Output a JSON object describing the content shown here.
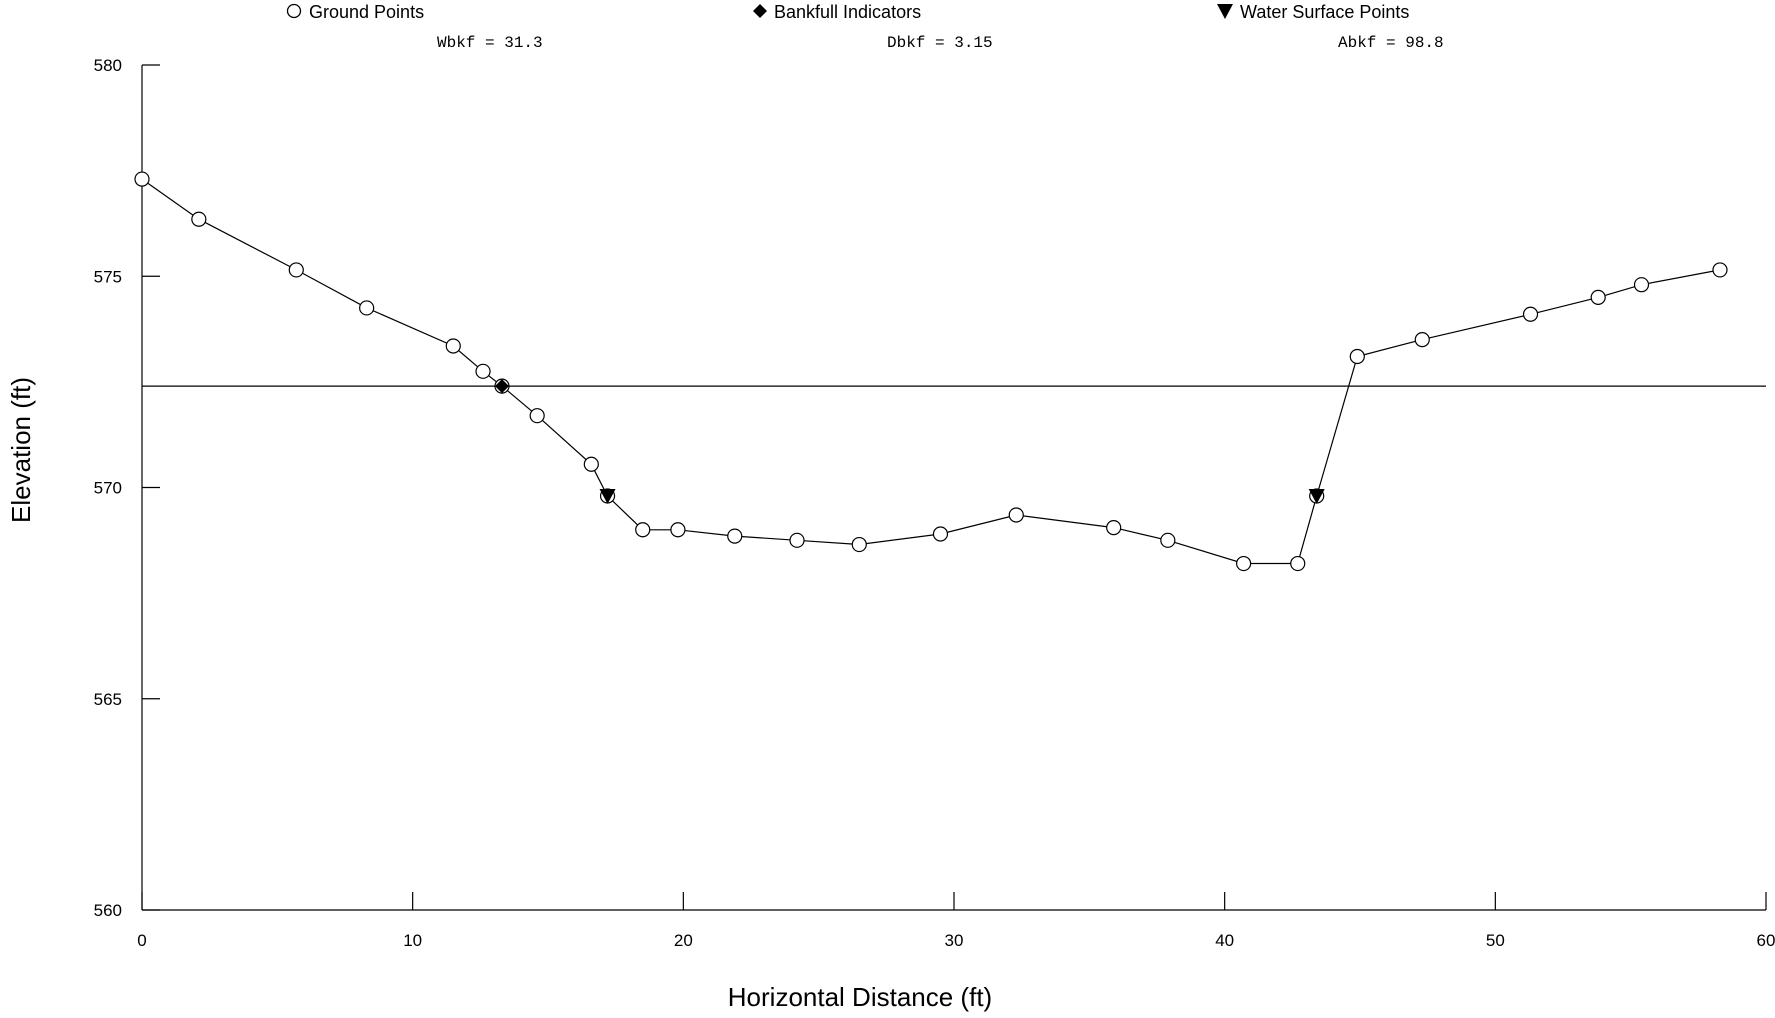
{
  "chart_data": {
    "type": "line",
    "xlabel": "Horizontal Distance (ft)",
    "ylabel": "Elevation (ft)",
    "xlim": [
      0,
      60
    ],
    "ylim": [
      560,
      580
    ],
    "x_ticks": [
      0,
      10,
      20,
      30,
      40,
      50,
      60
    ],
    "y_ticks": [
      560,
      565,
      570,
      575,
      580
    ],
    "grid": false,
    "legend_position": "top",
    "legend": [
      {
        "label": "Ground Points",
        "marker": "circle-open"
      },
      {
        "label": "Bankfull Indicators",
        "marker": "diamond-filled"
      },
      {
        "label": "Water Surface Points",
        "marker": "triangle-down-filled"
      }
    ],
    "annotations": [
      "Wbkf = 31.3",
      "Dbkf = 3.15",
      "Abkf = 98.8"
    ],
    "bankfull_elevation": 572.4,
    "series": [
      {
        "name": "Ground Points",
        "marker": "circle-open",
        "x": [
          0,
          2.1,
          5.7,
          8.3,
          11.5,
          12.6,
          13.3,
          14.6,
          16.6,
          17.2,
          18.5,
          19.8,
          21.9,
          24.2,
          26.5,
          29.5,
          32.3,
          35.9,
          37.9,
          40.7,
          42.7,
          43.4,
          44.9,
          47.3,
          51.3,
          53.8,
          55.4,
          58.3
        ],
        "y": [
          577.3,
          576.35,
          575.15,
          574.25,
          573.35,
          572.75,
          572.4,
          571.7,
          570.55,
          569.8,
          569.0,
          569.0,
          568.85,
          568.75,
          568.65,
          568.9,
          569.35,
          569.05,
          568.75,
          568.2,
          568.2,
          569.8,
          573.1,
          573.5,
          574.1,
          574.5,
          574.8,
          575.15
        ]
      },
      {
        "name": "Bankfull Indicators",
        "marker": "diamond-filled",
        "x": [
          13.3
        ],
        "y": [
          572.4
        ]
      },
      {
        "name": "Water Surface Points",
        "marker": "triangle-down-filled",
        "x": [
          17.2,
          43.4
        ],
        "y": [
          569.8,
          569.8
        ]
      }
    ]
  }
}
